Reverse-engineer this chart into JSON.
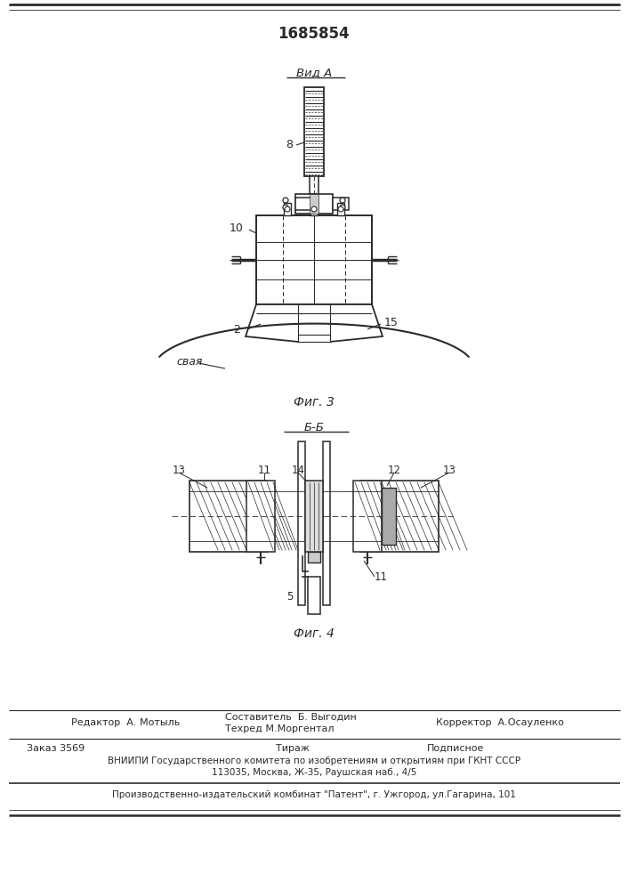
{
  "patent_number": "1685854",
  "fig3_label": "Вид А",
  "fig3_caption": "Фиг. 3",
  "fig4_label": "Б-Б",
  "fig4_caption": "Фиг. 4",
  "editor_line": "Редактор  А. Мотыль",
  "composer_line1": "Составитель  Б. Выгодин",
  "techred_line": "Техред М.Моргентал",
  "corrector_line": "Корректор  А.Осауленко",
  "order_line": "Заказ 3569",
  "tirazh_line": "Тираж",
  "podpisnoe_line": "Подписное",
  "vniiipi_line": "ВНИИПИ Государственного комитета по изобретениям и открытиям при ГКНТ СССР",
  "address_line": "113035, Москва, Ж-35, Раушская наб., 4/5",
  "publisher_line": "Производственно-издательский комбинат \"Патент\", г. Ужгород, ул.Гагарина, 101",
  "bg_color": "#ffffff",
  "line_color": "#2a2a2a"
}
